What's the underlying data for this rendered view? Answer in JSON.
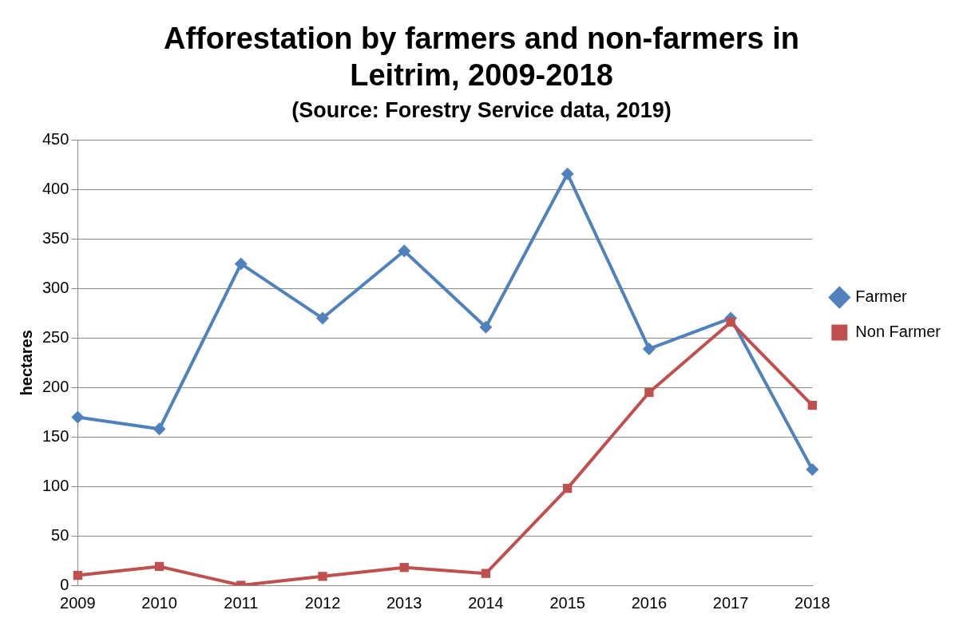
{
  "chart_data": {
    "type": "line",
    "title": "Afforestation by farmers and non-farmers in Leitrim, 2009-2018",
    "subtitle": "(Source: Forestry Service data, 2019)",
    "ylabel": "hectares",
    "categories": [
      "2009",
      "2010",
      "2011",
      "2012",
      "2013",
      "2014",
      "2015",
      "2016",
      "2017",
      "2018"
    ],
    "series": [
      {
        "name": "Farmer",
        "color": "#4f81bd",
        "marker": "diamond",
        "values": [
          170,
          158,
          325,
          270,
          338,
          261,
          416,
          239,
          270,
          117
        ]
      },
      {
        "name": "Non Farmer",
        "color": "#c0504d",
        "marker": "square",
        "values": [
          10,
          19,
          0,
          9,
          18,
          12,
          98,
          195,
          266,
          182
        ]
      }
    ],
    "ylim": [
      0,
      450
    ],
    "yticks": [
      0,
      50,
      100,
      150,
      200,
      250,
      300,
      350,
      400,
      450
    ],
    "grid": "y",
    "legend": "right",
    "line_style": "solid"
  }
}
